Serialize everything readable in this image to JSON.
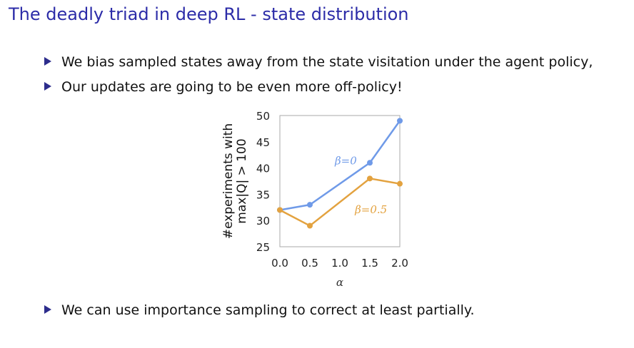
{
  "slide": {
    "title": "The deadly triad in deep RL - state distribution",
    "bullets": [
      "We bias sampled states away from the state visitation under the agent policy,",
      "Our updates are going to be even more off-policy!",
      "We can use importance sampling to correct at least partially."
    ]
  },
  "colors": {
    "title": "#2c2ca8",
    "bullet_marker": "#2c2c8c",
    "series_beta0": "#6f9ae8",
    "series_beta05": "#e3a23f",
    "axis": "#aaaaaa"
  },
  "chart_data": {
    "type": "line",
    "xlabel": "α",
    "ylabel_lines": [
      "#experiments with",
      "max|Q| > 100"
    ],
    "xlim": [
      0,
      2
    ],
    "ylim": [
      25,
      50
    ],
    "x_ticks": [
      0.0,
      0.5,
      1.0,
      1.5,
      2.0
    ],
    "x_tick_labels": [
      "0.0",
      "0.5",
      "1.0",
      "1.5",
      "2.0"
    ],
    "y_ticks": [
      25,
      30,
      35,
      40,
      45,
      50
    ],
    "y_tick_labels": [
      "25",
      "30",
      "35",
      "40",
      "45",
      "50"
    ],
    "grid": false,
    "series": [
      {
        "name": "β=0",
        "x": [
          0.0,
          0.5,
          1.5,
          2.0
        ],
        "y": [
          32,
          33,
          41,
          49
        ]
      },
      {
        "name": "β=0.5",
        "x": [
          0.0,
          0.5,
          1.5,
          2.0
        ],
        "y": [
          32,
          29,
          38,
          37
        ]
      }
    ]
  }
}
